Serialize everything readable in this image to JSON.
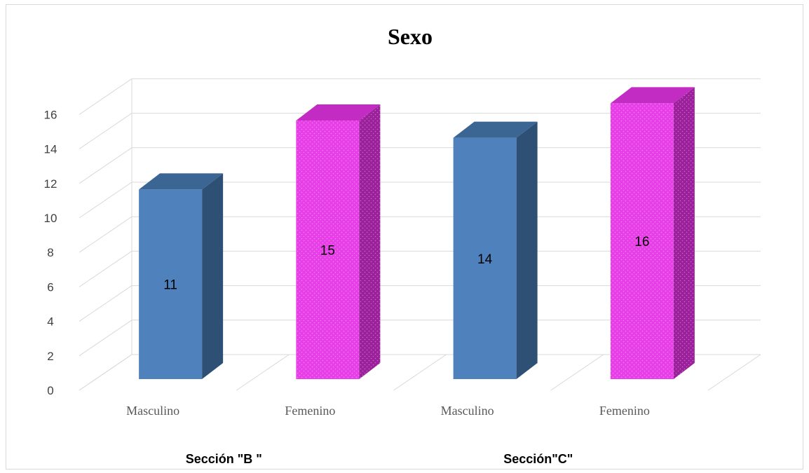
{
  "chart_data": {
    "type": "bar",
    "title": "Sexo",
    "ylim": [
      0,
      16
    ],
    "yticks": [
      0,
      2,
      4,
      6,
      8,
      10,
      12,
      14,
      16
    ],
    "grid": true,
    "categories": [
      "Masculino",
      "Femenino",
      "Masculino",
      "Femenino"
    ],
    "groups": [
      {
        "label": "Sección \"B \"",
        "categories": [
          "Masculino",
          "Femenino"
        ]
      },
      {
        "label": "Sección\"C\"",
        "categories": [
          "Masculino",
          "Femenino"
        ]
      }
    ],
    "values": [
      11,
      15,
      14,
      16
    ],
    "data_labels": [
      "11",
      "15",
      "14",
      "16"
    ],
    "colors": {
      "Masculino": "#4f81bd",
      "Masculino_side": "#2f5075",
      "Masculino_top": "#3b6593",
      "Femenino": "#e83ee8",
      "Femenino_side": "#9c1f9c",
      "Femenino_top": "#c22cc2",
      "grid": "#d9d9d9"
    }
  }
}
